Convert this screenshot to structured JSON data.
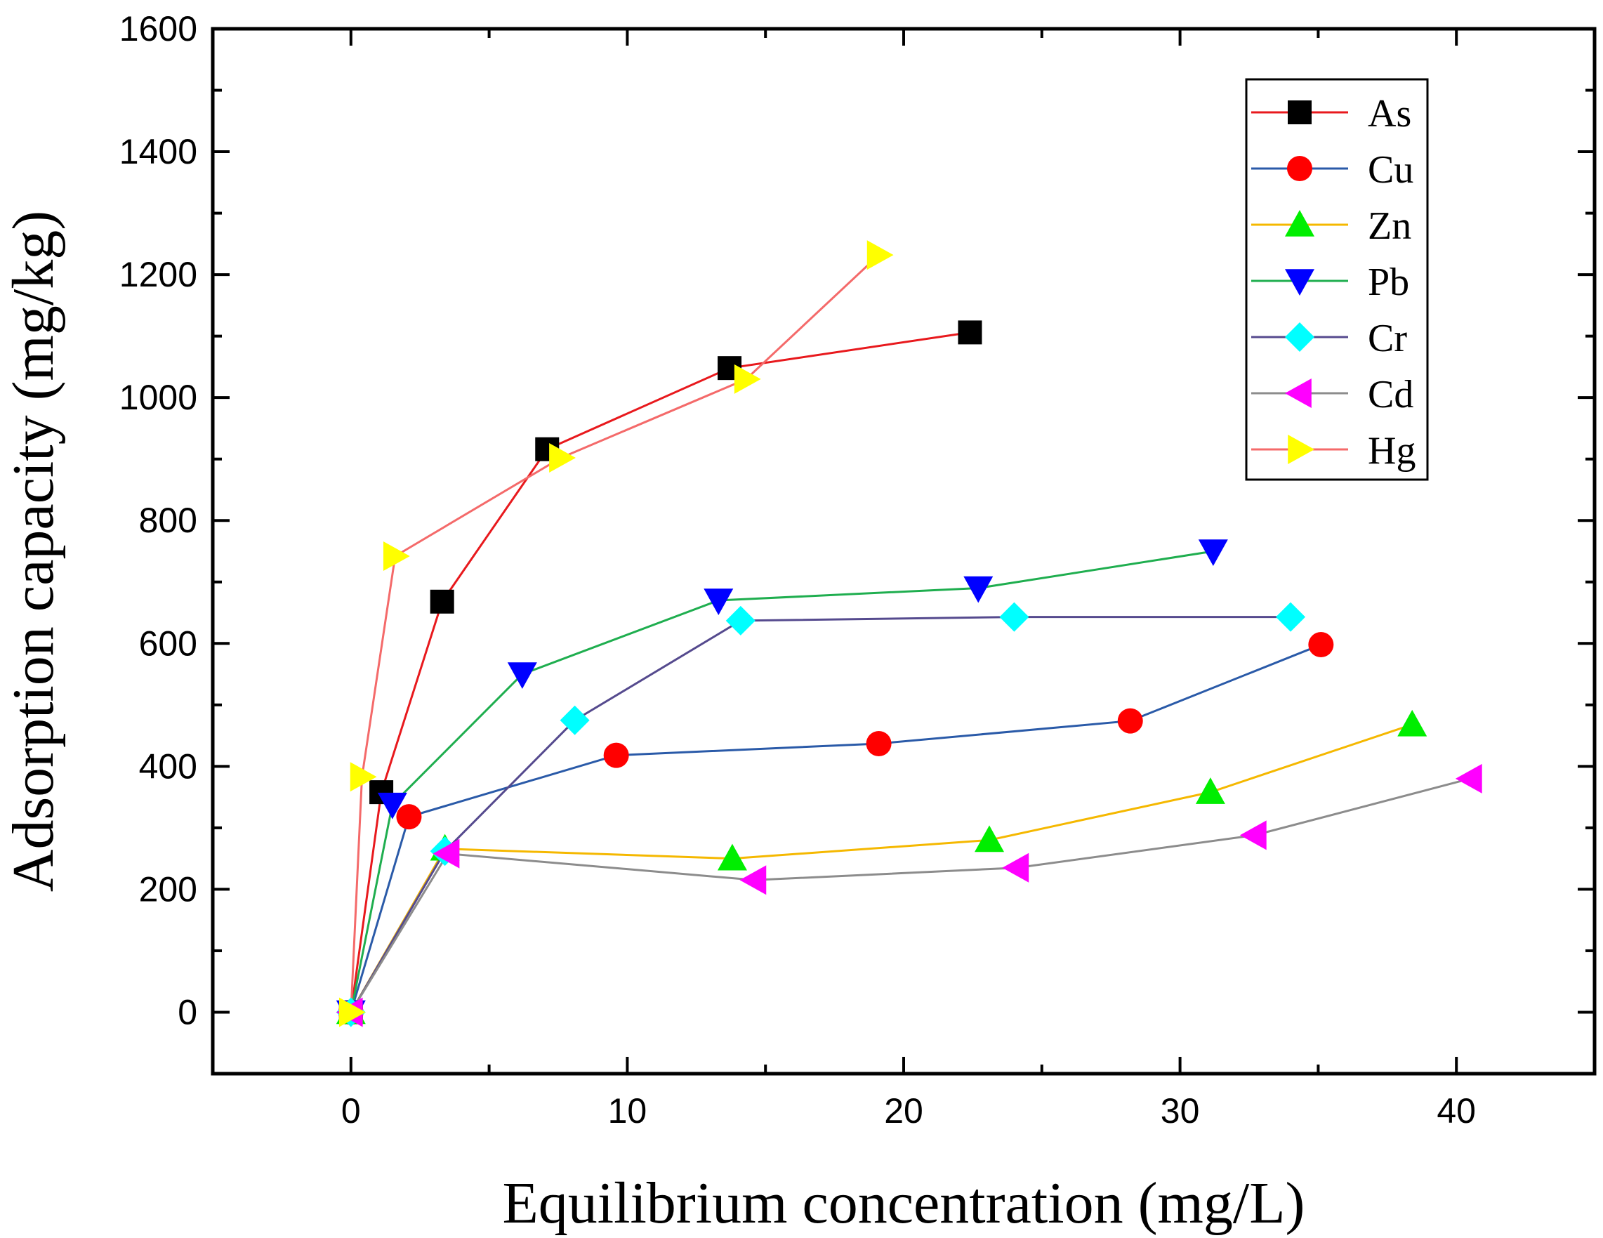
{
  "chart_data": {
    "type": "line",
    "title": "",
    "xlabel": "Equilibrium concentration (mg/L)",
    "ylabel": "Adsorption capacity (mg/kg)",
    "xlim": [
      -5,
      45
    ],
    "ylim": [
      -100,
      1600
    ],
    "xticks": [
      0,
      10,
      20,
      30,
      40
    ],
    "yticks": [
      0,
      200,
      400,
      600,
      800,
      1000,
      1200,
      1400,
      1600
    ],
    "grid": false,
    "legend_position": "top-right",
    "series": [
      {
        "name": "As",
        "marker": "square",
        "marker_color": "#000000",
        "line_color": "#e8191d",
        "x": [
          0,
          1.1,
          3.3,
          7.1,
          13.7,
          22.4
        ],
        "y": [
          0,
          358,
          668,
          916,
          1048,
          1106
        ]
      },
      {
        "name": "Cu",
        "marker": "circle",
        "marker_color": "#ff0000",
        "line_color": "#2a5aa8",
        "x": [
          0,
          2.1,
          9.6,
          19.1,
          28.2,
          35.1
        ],
        "y": [
          0,
          318,
          418,
          437,
          474,
          598
        ]
      },
      {
        "name": "Zn",
        "marker": "triangle-up",
        "marker_color": "#00ee00",
        "line_color": "#f5b800",
        "x": [
          0,
          3.4,
          13.8,
          23.1,
          31.1,
          38.4
        ],
        "y": [
          0,
          266,
          250,
          280,
          358,
          468
        ]
      },
      {
        "name": "Pb",
        "marker": "triangle-down",
        "marker_color": "#0000ff",
        "line_color": "#1fae4f",
        "x": [
          0,
          1.5,
          6.2,
          13.3,
          22.7,
          31.2
        ],
        "y": [
          0,
          338,
          550,
          670,
          690,
          750
        ]
      },
      {
        "name": "Cr",
        "marker": "diamond",
        "marker_color": "#00ffff",
        "line_color": "#554a8e",
        "x": [
          0,
          3.4,
          8.1,
          14.1,
          24.0,
          34.0
        ],
        "y": [
          0,
          262,
          475,
          637,
          643,
          643
        ]
      },
      {
        "name": "Cd",
        "marker": "triangle-left",
        "marker_color": "#ff00ff",
        "line_color": "#8c8c8c",
        "x": [
          0,
          3.5,
          14.6,
          24.1,
          32.7,
          40.5
        ],
        "y": [
          0,
          258,
          215,
          235,
          288,
          380
        ]
      },
      {
        "name": "Hg",
        "marker": "triangle-right",
        "marker_color": "#ffff00",
        "line_color": "#f46a6a",
        "x": [
          0,
          0.4,
          1.6,
          7.6,
          14.3,
          19.1
        ],
        "y": [
          0,
          383,
          742,
          902,
          1030,
          1232
        ]
      }
    ]
  }
}
